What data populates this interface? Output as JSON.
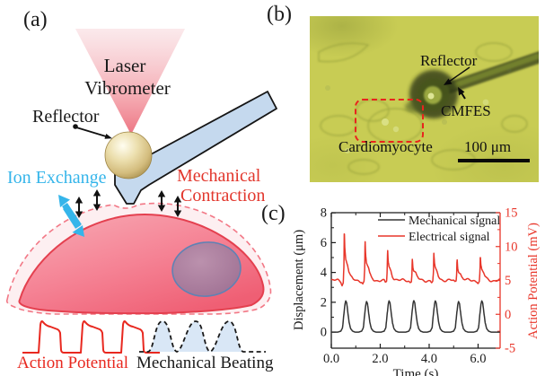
{
  "figure": {
    "panel_a": {
      "label": "(a)",
      "laser_line1": "Laser",
      "laser_line2": "Vibrometer",
      "reflector_label": "Reflector",
      "ion_exchange_label": "Ion Exchange",
      "mech_line1": "Mechanical",
      "mech_line2": "Contraction",
      "action_potential_label": "Action Potential",
      "mechanical_beating_label": "Mechanical Beating"
    },
    "panel_b": {
      "label": "(b)",
      "reflector_label": "Reflector",
      "cmfes_label": "CMFES",
      "cardiomyocyte_label": "Cardiomyocyte",
      "scale_bar_label": "100 μm"
    },
    "panel_c": {
      "label": "(c)"
    }
  },
  "colors": {
    "accent_red": "#e8362a",
    "label_red": "#e2362c",
    "accent_cyan": "#35b5ea",
    "cell_pink": "#f58294",
    "laser_pink": "#f09aa5",
    "micrograph_bg": "#c8cc54",
    "cantilever_blue": "#c5d9ee",
    "sphere_gold": "#e0cf97",
    "trace_black": "#333333"
  },
  "chart_data": {
    "type": "line",
    "title": "",
    "xlabel": "Time (s)",
    "xlim": [
      0,
      6.9
    ],
    "x_ticks": [
      0,
      2,
      4,
      6
    ],
    "x_tick_labels": [
      "0.0",
      "2.0",
      "4.0",
      "6.0"
    ],
    "x_minor_ticks": [
      1,
      3,
      5
    ],
    "grid": false,
    "legend_position": "top-right",
    "axes_left": {
      "label": "Displacement (μm)",
      "ticks": [
        0,
        2,
        4,
        6,
        8
      ],
      "minor_ticks": [
        1,
        3,
        5,
        7
      ],
      "lim": [
        -1.08,
        8.01
      ],
      "color": "#1a1a1a"
    },
    "axes_right": {
      "label": "Action Potential (mV)",
      "ticks": [
        -5,
        0,
        5,
        10,
        15
      ],
      "minor_ticks": [
        -2.5,
        2.5,
        7.5,
        12.5
      ],
      "lim": [
        -5,
        15
      ],
      "color": "#e8362a"
    },
    "legend": [
      {
        "label": "Mechanical signal",
        "color": "#333333"
      },
      {
        "label": "Electrical signal",
        "color": "#e8362a"
      }
    ],
    "series": [
      {
        "name": "Mechanical signal",
        "axis": "left",
        "color": "#333333",
        "baseline": 0,
        "peak_times": [
          0.59,
          1.44,
          2.36,
          3.37,
          4.25,
          5.2,
          6.15
        ],
        "peak_amplitudes": [
          2.1,
          2.05,
          2.1,
          2.12,
          2.1,
          2.05,
          2.1
        ],
        "pulse_shape": [
          [
            -0.32,
            0
          ],
          [
            -0.2,
            0.03
          ],
          [
            -0.13,
            0.14
          ],
          [
            -0.08,
            0.55
          ],
          [
            -0.03,
            0.9
          ],
          [
            0,
            1
          ],
          [
            0.04,
            0.93
          ],
          [
            0.09,
            0.6
          ],
          [
            0.14,
            0.3
          ],
          [
            0.2,
            0.11
          ],
          [
            0.28,
            0.03
          ],
          [
            0.38,
            0
          ]
        ]
      },
      {
        "name": "Electrical signal",
        "axis": "right",
        "color": "#e8362a",
        "baseline": 5,
        "peak_times": [
          0.53,
          1.38,
          2.3,
          3.31,
          4.19,
          5.14,
          6.09
        ],
        "peak_amplitudes": [
          12.6,
          11.0,
          9.7,
          8.4,
          9.0,
          8.4,
          8.6
        ],
        "pulse_shape": [
          [
            -0.26,
            0
          ],
          [
            -0.14,
            -0.02
          ],
          [
            -0.09,
            -0.08
          ],
          [
            -0.04,
            -0.03
          ],
          [
            -0.015,
            0.3
          ],
          [
            0,
            1
          ],
          [
            0.025,
            0.6
          ],
          [
            0.06,
            0.42
          ],
          [
            0.1,
            0.36
          ],
          [
            0.14,
            0.3
          ],
          [
            0.19,
            0.16
          ],
          [
            0.26,
            0.07
          ],
          [
            0.36,
            0.02
          ],
          [
            0.5,
            0
          ]
        ],
        "noise": {
          "amp1": 0.14,
          "freq1": 9.3,
          "amp2": 0.1,
          "freq2": 23.7
        }
      }
    ]
  }
}
